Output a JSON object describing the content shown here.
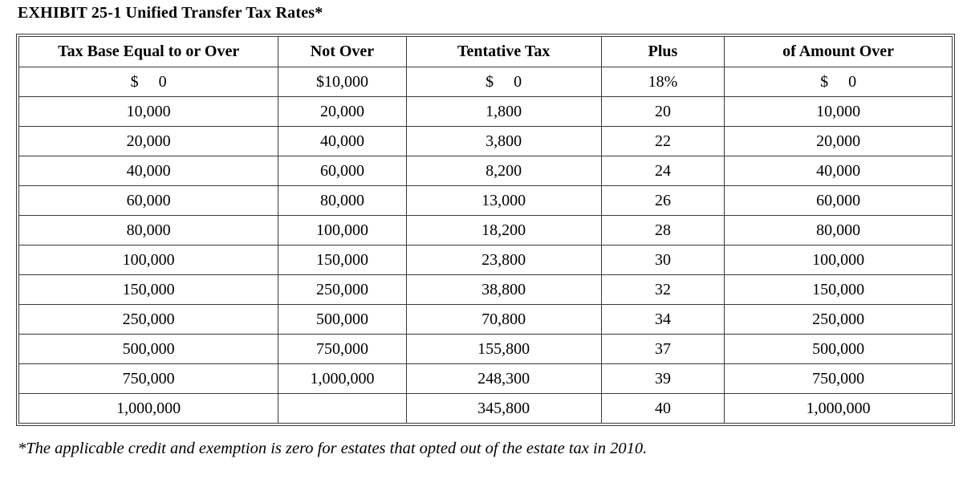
{
  "page": {
    "title": "EXHIBIT 25-1 Unified Transfer Tax Rates*",
    "footnote": "*The applicable credit and exemption is zero for estates that opted out of the estate tax in 2010."
  },
  "colors": {
    "border": "#3a3a3a",
    "text": "#000000",
    "background": "#ffffff"
  },
  "table": {
    "headers": [
      "Tax Base Equal to or Over",
      "Not Over",
      "Tentative Tax",
      "Plus",
      "of Amount Over"
    ],
    "rows": [
      [
        "$     0",
        "$10,000",
        "$     0",
        "18%",
        "$     0"
      ],
      [
        "10,000",
        "20,000",
        "1,800",
        "20",
        "10,000"
      ],
      [
        "20,000",
        "40,000",
        "3,800",
        "22",
        "20,000"
      ],
      [
        "40,000",
        "60,000",
        "8,200",
        "24",
        "40,000"
      ],
      [
        "60,000",
        "80,000",
        "13,000",
        "26",
        "60,000"
      ],
      [
        "80,000",
        "100,000",
        "18,200",
        "28",
        "80,000"
      ],
      [
        "100,000",
        "150,000",
        "23,800",
        "30",
        "100,000"
      ],
      [
        "150,000",
        "250,000",
        "38,800",
        "32",
        "150,000"
      ],
      [
        "250,000",
        "500,000",
        "70,800",
        "34",
        "250,000"
      ],
      [
        "500,000",
        "750,000",
        "155,800",
        "37",
        "500,000"
      ],
      [
        "750,000",
        "1,000,000",
        "248,300",
        "39",
        "750,000"
      ],
      [
        "1,000,000",
        "",
        "345,800",
        "40",
        "1,000,000"
      ]
    ]
  }
}
